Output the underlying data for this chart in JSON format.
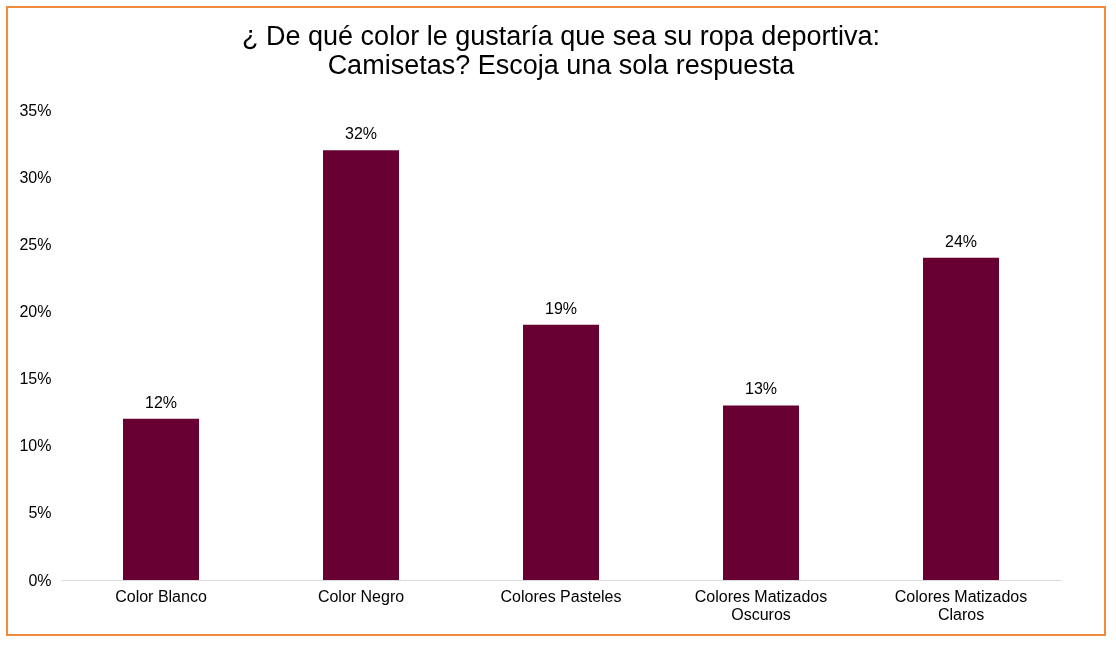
{
  "chart_data": {
    "type": "bar",
    "title": "¿ De qué color le gustaría que sea su ropa deportiva: Camisetas? Escoja una sola respuesta",
    "categories": [
      "Color Blanco",
      "Color Negro",
      "Colores Pasteles",
      "Colores Matizados Oscuros",
      "Colores Matizados Claros"
    ],
    "values": [
      12,
      32,
      19,
      13,
      24
    ],
    "value_labels": [
      "12%",
      "32%",
      "19%",
      "13%",
      "24%"
    ],
    "color": "#680032",
    "ylim": [
      0,
      35
    ],
    "yticks": [
      {
        "value": 0,
        "label": "0%"
      },
      {
        "value": 5,
        "label": "5%"
      },
      {
        "value": 10,
        "label": "10%"
      },
      {
        "value": 15,
        "label": "15%"
      },
      {
        "value": 20,
        "label": "20%"
      },
      {
        "value": 25,
        "label": "25%"
      },
      {
        "value": 30,
        "label": "30%"
      },
      {
        "value": 35,
        "label": "35%"
      }
    ],
    "grid": false
  }
}
